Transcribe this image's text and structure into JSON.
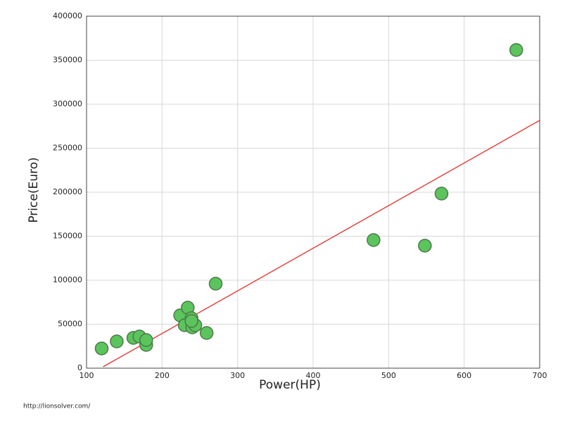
{
  "chart_data": {
    "type": "scatter",
    "xlabel": "Power(HP)",
    "ylabel": "Price(Euro)",
    "x": [
      120,
      140,
      162,
      170,
      179,
      179,
      224,
      230,
      234,
      240,
      239,
      244,
      239,
      259,
      271,
      480,
      548,
      570,
      669
    ],
    "series": [
      {
        "color": "#5cc45c",
        "values": [
          22400,
          30400,
          34400,
          36000,
          26400,
          32000,
          60000,
          48800,
          68800,
          46400,
          56800,
          48800,
          53600,
          40000,
          96000,
          145600,
          139200,
          198400,
          361600
        ]
      }
    ],
    "trendline": {
      "color": "#e0302a",
      "x": [
        122,
        700
      ],
      "y": [
        1600,
        281600
      ]
    },
    "xlim": [
      100,
      700
    ],
    "xticks": [
      100,
      200,
      300,
      400,
      500,
      600,
      700
    ],
    "ylim": [
      0,
      400000
    ],
    "yticks": [
      0,
      50000,
      100000,
      150000,
      200000,
      250000,
      300000,
      350000,
      400000
    ],
    "grid": true
  },
  "footer": "http://lionsolver.com/"
}
